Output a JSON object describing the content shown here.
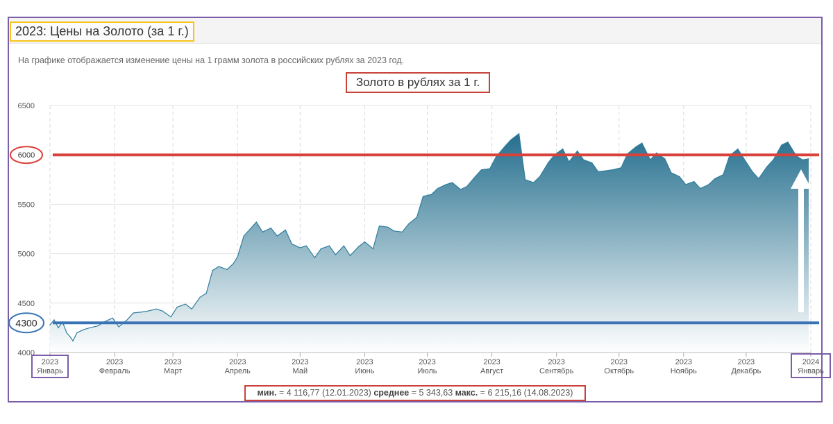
{
  "header": {
    "title": "2023: Цены на Золото (за 1 г.)",
    "description": "На графике отображается изменение цены на 1 грамм золота в российских рублях за 2023 год."
  },
  "stats": {
    "min_label": "мин.",
    "min_value": " = 4 116,77 (12.01.2023) ",
    "avg_label": "среднее",
    "avg_value": " = 5 343,63 ",
    "max_label": "макс.",
    "max_value": " = 6 215,16 (14.08.2023)"
  },
  "annotations": {
    "line_6000_label": "6000",
    "line_4300_label": "4300"
  },
  "colors": {
    "line": "#2e7d9c",
    "area_top": "#256f8e",
    "area_bottom": "#ffffff",
    "red_line": "#d9413b",
    "blue_line": "#3a73b5",
    "frame": "#7b5ea7",
    "highlight_yellow": "#f5c518"
  },
  "chart_data": {
    "type": "area",
    "title": "Золото в рублях за 1 г.",
    "xlabel": "",
    "ylabel": "",
    "ylim": [
      4000,
      6500
    ],
    "yticks": [
      4000,
      4500,
      5000,
      5500,
      6000,
      6500
    ],
    "grid": true,
    "xticks": [
      {
        "year": "2023",
        "month": "Январь",
        "x": "2023-01-01"
      },
      {
        "year": "2023",
        "month": "Февраль",
        "x": "2023-02-01"
      },
      {
        "year": "2023",
        "month": "Март",
        "x": "2023-03-01"
      },
      {
        "year": "2023",
        "month": "Апрель",
        "x": "2023-04-01"
      },
      {
        "year": "2023",
        "month": "Май",
        "x": "2023-05-01"
      },
      {
        "year": "2023",
        "month": "Июнь",
        "x": "2023-06-01"
      },
      {
        "year": "2023",
        "month": "Июль",
        "x": "2023-07-01"
      },
      {
        "year": "2023",
        "month": "Август",
        "x": "2023-08-01"
      },
      {
        "year": "2023",
        "month": "Сентябрь",
        "x": "2023-09-01"
      },
      {
        "year": "2023",
        "month": "Октябрь",
        "x": "2023-10-01"
      },
      {
        "year": "2023",
        "month": "Ноябрь",
        "x": "2023-11-01"
      },
      {
        "year": "2023",
        "month": "Декабрь",
        "x": "2023-12-01"
      },
      {
        "year": "2024",
        "month": "Январь",
        "x": "2024-01-01"
      }
    ],
    "reference_lines": [
      {
        "value": 6000,
        "color": "#d9413b"
      },
      {
        "value": 4300,
        "color": "#3a73b5"
      }
    ],
    "series": [
      {
        "x": [
          "2023-01-01",
          "2023-01-03",
          "2023-01-05",
          "2023-01-07",
          "2023-01-09",
          "2023-01-11",
          "2023-01-12",
          "2023-01-14",
          "2023-01-17",
          "2023-01-20",
          "2023-01-24",
          "2023-01-27",
          "2023-01-31",
          "2023-02-03",
          "2023-02-07",
          "2023-02-10",
          "2023-02-14",
          "2023-02-17",
          "2023-02-21",
          "2023-02-24",
          "2023-02-28",
          "2023-03-03",
          "2023-03-07",
          "2023-03-10",
          "2023-03-14",
          "2023-03-17",
          "2023-03-20",
          "2023-03-23",
          "2023-03-27",
          "2023-03-30",
          "2023-04-01",
          "2023-04-04",
          "2023-04-07",
          "2023-04-10",
          "2023-04-13",
          "2023-04-17",
          "2023-04-20",
          "2023-04-24",
          "2023-04-27",
          "2023-05-01",
          "2023-05-04",
          "2023-05-08",
          "2023-05-11",
          "2023-05-15",
          "2023-05-18",
          "2023-05-22",
          "2023-05-25",
          "2023-05-29",
          "2023-06-01",
          "2023-06-05",
          "2023-06-08",
          "2023-06-12",
          "2023-06-15",
          "2023-06-19",
          "2023-06-22",
          "2023-06-26",
          "2023-06-29",
          "2023-07-03",
          "2023-07-06",
          "2023-07-10",
          "2023-07-13",
          "2023-07-17",
          "2023-07-20",
          "2023-07-24",
          "2023-07-27",
          "2023-07-31",
          "2023-08-03",
          "2023-08-07",
          "2023-08-10",
          "2023-08-14",
          "2023-08-17",
          "2023-08-21",
          "2023-08-24",
          "2023-08-28",
          "2023-08-31",
          "2023-09-04",
          "2023-09-07",
          "2023-09-11",
          "2023-09-14",
          "2023-09-18",
          "2023-09-21",
          "2023-09-25",
          "2023-09-28",
          "2023-10-02",
          "2023-10-05",
          "2023-10-09",
          "2023-10-12",
          "2023-10-16",
          "2023-10-19",
          "2023-10-23",
          "2023-10-26",
          "2023-10-30",
          "2023-11-02",
          "2023-11-06",
          "2023-11-09",
          "2023-11-13",
          "2023-11-16",
          "2023-11-20",
          "2023-11-23",
          "2023-11-27",
          "2023-11-30",
          "2023-12-04",
          "2023-12-07",
          "2023-12-11",
          "2023-12-14",
          "2023-12-18",
          "2023-12-21",
          "2023-12-25",
          "2023-12-28",
          "2023-12-31"
        ],
        "values": [
          4280,
          4330,
          4250,
          4310,
          4200,
          4150,
          4117,
          4200,
          4230,
          4250,
          4270,
          4310,
          4350,
          4260,
          4330,
          4400,
          4410,
          4420,
          4440,
          4420,
          4360,
          4460,
          4490,
          4440,
          4560,
          4600,
          4830,
          4870,
          4840,
          4900,
          4970,
          5180,
          5250,
          5320,
          5220,
          5260,
          5180,
          5240,
          5100,
          5060,
          5080,
          4960,
          5050,
          5080,
          4990,
          5080,
          4980,
          5070,
          5120,
          5050,
          5280,
          5270,
          5230,
          5220,
          5300,
          5370,
          5580,
          5600,
          5660,
          5700,
          5720,
          5650,
          5680,
          5780,
          5850,
          5860,
          5980,
          6080,
          6150,
          6215,
          5750,
          5720,
          5780,
          5920,
          6000,
          6060,
          5930,
          6040,
          5950,
          5920,
          5830,
          5840,
          5850,
          5870,
          6010,
          6080,
          6120,
          5950,
          6020,
          5960,
          5820,
          5780,
          5700,
          5730,
          5660,
          5700,
          5760,
          5800,
          5990,
          6060,
          5960,
          5830,
          5760,
          5880,
          5950,
          6100,
          6130,
          5990,
          5950,
          5960
        ]
      }
    ]
  }
}
